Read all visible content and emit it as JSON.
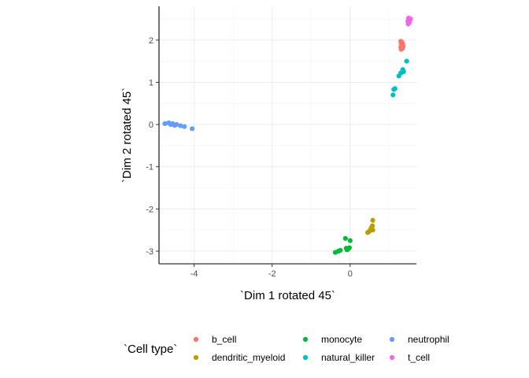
{
  "chart_data": {
    "type": "scatter",
    "xlabel": "`Dim 1 rotated 45`",
    "ylabel": "`Dim 2 rotated 45`",
    "xlim": [
      -4.9,
      1.7
    ],
    "ylim": [
      -3.3,
      2.8
    ],
    "x_ticks": [
      "-4",
      "-2",
      "0"
    ],
    "x_tick_values": [
      -4,
      -2,
      0
    ],
    "y_ticks": [
      "-3",
      "-2",
      "-1",
      "0",
      "1",
      "2"
    ],
    "y_tick_values": [
      -3,
      -2,
      -1,
      0,
      1,
      2
    ],
    "grid": true,
    "legend_position": "bottom",
    "legend_title": "`Cell type`",
    "series": [
      {
        "name": "b_cell",
        "color": "#F8766D",
        "x": [
          1.3,
          1.33,
          1.31,
          1.35,
          1.32,
          1.36,
          1.3,
          1.34,
          1.31,
          1.33
        ],
        "y": [
          1.97,
          1.95,
          1.92,
          1.9,
          1.87,
          1.85,
          1.83,
          1.8,
          1.78,
          1.93
        ]
      },
      {
        "name": "dendritic_myeloid",
        "color": "#B79F00",
        "x": [
          0.58,
          0.57,
          0.55,
          0.52,
          0.5,
          0.48,
          0.45,
          0.58,
          0.54
        ],
        "y": [
          -2.27,
          -2.4,
          -2.48,
          -2.5,
          -2.52,
          -2.54,
          -2.56,
          -2.5,
          -2.45
        ]
      },
      {
        "name": "monocyte",
        "color": "#00BA38",
        "x": [
          -0.38,
          -0.3,
          -0.25,
          -0.1,
          -0.05,
          -0.08,
          0.0,
          -0.12,
          -0.02
        ],
        "y": [
          -3.03,
          -3.0,
          -2.98,
          -2.93,
          -2.95,
          -2.97,
          -2.75,
          -2.7,
          -2.92
        ]
      },
      {
        "name": "natural_killer",
        "color": "#00BFC4",
        "x": [
          1.45,
          1.35,
          1.3,
          1.25,
          1.15,
          1.12,
          1.1,
          1.37
        ],
        "y": [
          1.5,
          1.3,
          1.22,
          1.15,
          0.85,
          0.83,
          0.7,
          1.25
        ]
      },
      {
        "name": "neutrophil",
        "color": "#619CFF",
        "x": [
          -4.75,
          -4.65,
          -4.6,
          -4.55,
          -4.5,
          -4.45,
          -4.35,
          -4.25,
          -4.05
        ],
        "y": [
          0.02,
          0.04,
          0.0,
          0.02,
          -0.02,
          0.0,
          -0.03,
          -0.05,
          -0.1
        ]
      },
      {
        "name": "t_cell",
        "color": "#F564E3",
        "x": [
          1.5,
          1.53,
          1.48,
          1.52,
          1.5,
          1.55,
          1.49,
          1.51
        ],
        "y": [
          2.52,
          2.48,
          2.45,
          2.42,
          2.4,
          2.5,
          2.38,
          2.44
        ]
      }
    ]
  }
}
